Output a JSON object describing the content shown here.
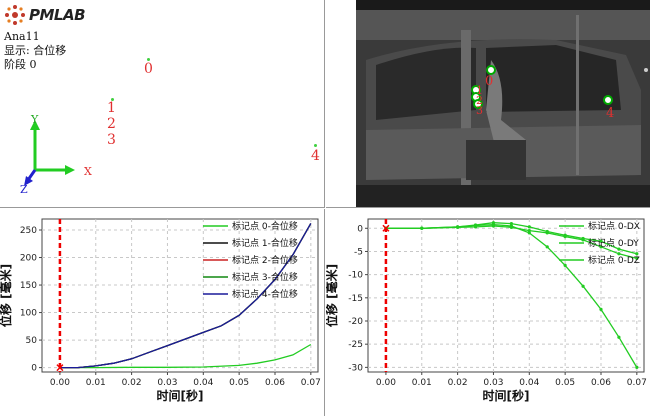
{
  "logo": {
    "text": "PMLAB"
  },
  "info": {
    "name": "Ana11",
    "display": "显示: 合位移",
    "stage": "阶段 0"
  },
  "scene": {
    "markers": [
      {
        "id": "0",
        "label": "0"
      },
      {
        "id": "1",
        "label": "1"
      },
      {
        "id": "2",
        "label": "2"
      },
      {
        "id": "3",
        "label": "3"
      },
      {
        "id": "4",
        "label": "4"
      }
    ],
    "axes": {
      "x": "X",
      "y": "Y",
      "z": "Z"
    }
  },
  "camera": {
    "timestamp_text": "...",
    "marker_labels": [
      "0",
      "1",
      "2",
      "3",
      "4"
    ]
  },
  "colors": {
    "red": "#e03030",
    "green": "#22cc22",
    "navy": "#1a1a9a",
    "grid": "#c8c8c8"
  },
  "chart_data": [
    {
      "type": "line",
      "xlabel": "时间[秒]",
      "ylabel": "位移 [毫米]",
      "xlim": [
        -0.005,
        0.072
      ],
      "ylim": [
        -8,
        270
      ],
      "xticks": [
        "0.00",
        "0.01",
        "0.02",
        "0.03",
        "0.04",
        "0.05",
        "0.06",
        "0.07"
      ],
      "yticks": [
        "0",
        "50",
        "100",
        "150",
        "200",
        "250"
      ],
      "legend_position": "top-right",
      "series": [
        {
          "name": "标记点 0-合位移",
          "color": "#22cc22",
          "x": [
            0,
            0.01,
            0.02,
            0.03,
            0.04,
            0.05,
            0.055,
            0.06,
            0.065,
            0.07
          ],
          "values": [
            0,
            0,
            0.5,
            0.5,
            1,
            4,
            8,
            14,
            23,
            42
          ]
        },
        {
          "name": "标记点 1-合位移",
          "color": "#111111",
          "x": [
            0,
            0.005,
            0.01,
            0.015,
            0.02,
            0.025,
            0.03,
            0.035,
            0.04,
            0.045,
            0.05,
            0.055,
            0.06,
            0.065,
            0.07
          ],
          "values": [
            0,
            0,
            3,
            8,
            16,
            28,
            40,
            52,
            64,
            76,
            95,
            125,
            160,
            205,
            262
          ]
        },
        {
          "name": "标记点 2-合位移",
          "color": "#cc2222",
          "x": [
            0,
            0.005,
            0.01,
            0.015,
            0.02,
            0.025,
            0.03,
            0.035,
            0.04,
            0.045,
            0.05,
            0.055,
            0.06,
            0.065,
            0.07
          ],
          "values": [
            0,
            0,
            3,
            8,
            16,
            28,
            40,
            52,
            64,
            76,
            95,
            125,
            160,
            205,
            262
          ]
        },
        {
          "name": "标记点 3-合位移",
          "color": "#118811",
          "x": [
            0,
            0.005,
            0.01,
            0.015,
            0.02,
            0.025,
            0.03,
            0.035,
            0.04,
            0.045,
            0.05,
            0.055,
            0.06,
            0.065,
            0.07
          ],
          "values": [
            0,
            0,
            3,
            8,
            16,
            28,
            40,
            52,
            64,
            76,
            95,
            125,
            160,
            205,
            262
          ]
        },
        {
          "name": "标记点 4-合位移",
          "color": "#1a1a9a",
          "x": [
            0,
            0.005,
            0.01,
            0.015,
            0.02,
            0.025,
            0.03,
            0.035,
            0.04,
            0.045,
            0.05,
            0.055,
            0.06,
            0.065,
            0.07
          ],
          "values": [
            0,
            0,
            3,
            8,
            16,
            28,
            40,
            52,
            64,
            76,
            95,
            125,
            160,
            205,
            262
          ]
        }
      ],
      "cursor_x": 0.0
    },
    {
      "type": "line",
      "xlabel": "时间[秒]",
      "ylabel": "位移 [毫米]",
      "xlim": [
        -0.005,
        0.072
      ],
      "ylim": [
        -31,
        2
      ],
      "xticks": [
        "0.00",
        "0.01",
        "0.02",
        "0.03",
        "0.04",
        "0.05",
        "0.06",
        "0.07"
      ],
      "yticks": [
        "0",
        "-5",
        "-10",
        "-15",
        "-20",
        "-25",
        "-30"
      ],
      "legend_position": "top-right",
      "series": [
        {
          "name": "标记点 0-DX",
          "color": "#22cc22",
          "x": [
            0,
            0.01,
            0.02,
            0.025,
            0.03,
            0.035,
            0.04,
            0.045,
            0.05,
            0.055,
            0.06,
            0.065,
            0.07
          ],
          "values": [
            0,
            0,
            0.3,
            0.6,
            0.8,
            0.5,
            -1,
            -4,
            -8,
            -12.5,
            -17.5,
            -23.5,
            -30
          ]
        },
        {
          "name": "标记点 0-DY",
          "color": "#22cc22",
          "x": [
            0,
            0.01,
            0.02,
            0.025,
            0.03,
            0.035,
            0.04,
            0.045,
            0.05,
            0.055,
            0.06,
            0.065,
            0.07
          ],
          "values": [
            0,
            0,
            0.3,
            0.7,
            1.2,
            1.0,
            0.3,
            -0.7,
            -1.5,
            -2.2,
            -2.8,
            -4.5,
            -5.5
          ]
        },
        {
          "name": "标记点 0-DZ",
          "color": "#22cc22",
          "x": [
            0,
            0.01,
            0.02,
            0.025,
            0.03,
            0.035,
            0.04,
            0.045,
            0.05,
            0.055,
            0.06,
            0.065,
            0.07
          ],
          "values": [
            0,
            0,
            0.2,
            0.3,
            0.5,
            0.2,
            -0.5,
            -1.0,
            -1.8,
            -2.5,
            -4.0,
            -5.5,
            -6.5
          ]
        }
      ],
      "cursor_x": 0.0
    }
  ]
}
